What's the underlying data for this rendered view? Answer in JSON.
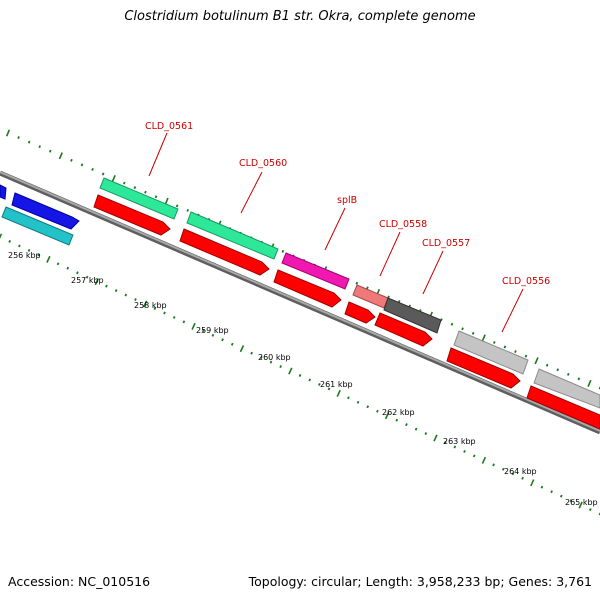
{
  "title": "Clostridium botulinum B1 str. Okra, complete genome",
  "accession": "Accession: NC_010516",
  "topology": "Topology: circular; Length: 3,958,233 bp; Genes: 3,761",
  "scale_labels": [
    "256 kbp",
    "257 kbp",
    "258 kbp",
    "259 kbp",
    "260 kbp",
    "261 kbp",
    "262 kbp",
    "263 kbp",
    "264 kbp",
    "265 kbp"
  ],
  "gene_labels": [
    "CLD_0561",
    "CLD_0560",
    "splB",
    "CLD_0558",
    "CLD_0557",
    "CLD_0556"
  ],
  "colors": {
    "backbone": "#8a8a8a",
    "ticks": "#1a7a1a",
    "cds": "#ff0000",
    "label": "#cc0000",
    "blue": "#1515e6",
    "cyan": "#22c2c8",
    "green": "#2ee89a",
    "magenta": "#f018b0",
    "salmon": "#ef7878",
    "darkgray": "#5a5a5a",
    "lightgray": "#c4c4c4"
  }
}
